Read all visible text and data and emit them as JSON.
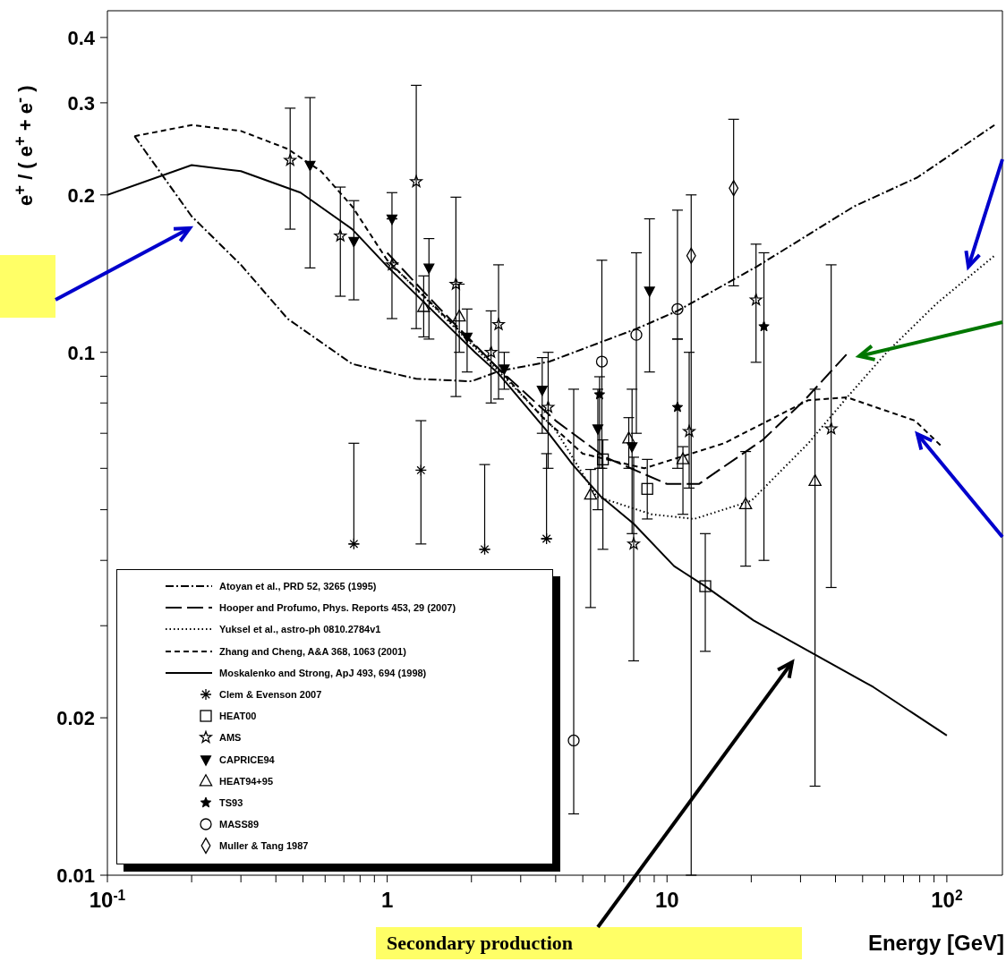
{
  "chart_data": {
    "type": "scatter",
    "xlabel": "Energy [GeV]",
    "ylabel": "e$^{+}$ / ( e$^{+}$ + e$^{-}$ )",
    "log": "xy",
    "legend": "bottom left",
    "xlim": [
      0.1,
      158
    ],
    "ylim": [
      0.01,
      0.45
    ],
    "xticks": [
      {
        "value": 0.1,
        "label": "10$^{-1}$"
      },
      {
        "value": 0.2,
        "label": null
      },
      {
        "value": 0.3,
        "label": null
      },
      {
        "value": 0.4,
        "label": null
      },
      {
        "value": 0.5,
        "label": null
      },
      {
        "value": 0.6,
        "label": null
      },
      {
        "value": 0.7,
        "label": null
      },
      {
        "value": 0.8,
        "label": null
      },
      {
        "value": 0.9,
        "label": null
      },
      1,
      {
        "value": 2,
        "label": null
      },
      {
        "value": 3,
        "label": null
      },
      {
        "value": 4,
        "label": null
      },
      {
        "value": 5,
        "label": null
      },
      {
        "value": 6,
        "label": null
      },
      {
        "value": 7,
        "label": null
      },
      {
        "value": 8,
        "label": null
      },
      {
        "value": 9,
        "label": null
      },
      10,
      {
        "value": 20,
        "label": null
      },
      {
        "value": 30,
        "label": null
      },
      {
        "value": 40,
        "label": null
      },
      {
        "value": 50,
        "label": null
      },
      {
        "value": 60,
        "label": null
      },
      {
        "value": 70,
        "label": null
      },
      {
        "value": 80,
        "label": null
      },
      {
        "value": 90,
        "label": null
      },
      {
        "value": 100,
        "label": "10$^{2}$"
      }
    ],
    "yticks": [
      0.01,
      0.02,
      {
        "value": 0.03,
        "label": null
      },
      {
        "value": 0.04,
        "label": null
      },
      {
        "value": 0.05,
        "label": null
      },
      {
        "value": 0.06,
        "label": null
      },
      {
        "value": 0.07,
        "label": null
      },
      {
        "value": 0.08,
        "label": null
      },
      {
        "value": 0.09,
        "label": null
      },
      0.1,
      0.2,
      0.3,
      0.4
    ],
    "annotations": [
      "Secondary production"
    ],
    "series": [
      {
        "type": "line",
        "name": "Atoyan et al., PRD 52, 3265 (1995)",
        "color": "#000000",
        "line_style": "dashdot",
        "x": [
          0.125,
          0.2,
          0.3,
          0.44,
          0.75,
          1.27,
          2,
          2.5,
          3.8,
          7.8,
          10.9,
          21,
          46.5,
          78.5,
          148
        ],
        "values": [
          0.259,
          0.182,
          0.147,
          0.116,
          0.095,
          0.089,
          0.088,
          0.092,
          0.096,
          0.111,
          0.12,
          0.146,
          0.19,
          0.216,
          0.272
        ]
      },
      {
        "type": "line",
        "name": "Hooper and Profumo, Phys. Reports 453, 29 (2007)",
        "color": "#000000",
        "line_style": "longdash",
        "x": [
          1,
          1.5,
          2.5,
          4,
          6,
          10,
          13,
          22,
          31,
          44.5
        ],
        "values": [
          0.155,
          0.123,
          0.093,
          0.074,
          0.063,
          0.056,
          0.056,
          0.068,
          0.081,
          0.1
        ]
      },
      {
        "type": "line",
        "name": "Yuksel et al., astro-ph 0810.2784v1",
        "color": "#000000",
        "line_style": "dotted",
        "x": [
          1,
          2.5,
          4,
          5.6,
          8.8,
          12.5,
          20,
          32,
          44,
          61,
          92,
          148
        ],
        "values": [
          0.15,
          0.092,
          0.071,
          0.053,
          0.049,
          0.048,
          0.052,
          0.067,
          0.082,
          0.1,
          0.124,
          0.153
        ]
      },
      {
        "type": "line",
        "name": "Zhang and Cheng, A&A 368, 1063 (2001)",
        "color": "#000000",
        "line_style": "dashed",
        "x": [
          0.125,
          0.2,
          0.3,
          0.44,
          0.58,
          0.75,
          1,
          2.5,
          3.6,
          5,
          8.3,
          16,
          32,
          44,
          77,
          96
        ],
        "values": [
          0.259,
          0.272,
          0.265,
          0.245,
          0.222,
          0.19,
          0.15,
          0.093,
          0.075,
          0.064,
          0.06,
          0.067,
          0.081,
          0.082,
          0.074,
          0.066
        ]
      },
      {
        "type": "line",
        "name": "Moskalenko and Strong, ApJ 493, 694 (1998)",
        "color": "#000000",
        "line_style": "solid",
        "x": [
          0.1,
          0.2,
          0.3,
          0.49,
          0.75,
          1,
          2.06,
          2.5,
          3.7,
          4.6,
          5.8,
          7.6,
          10.6,
          13.7,
          20.4,
          33.4,
          54.6,
          100
        ],
        "values": [
          0.2,
          0.228,
          0.222,
          0.202,
          0.172,
          0.146,
          0.1,
          0.091,
          0.071,
          0.061,
          0.053,
          0.047,
          0.039,
          0.0357,
          0.0307,
          0.0265,
          0.0229,
          0.0185
        ]
      },
      {
        "name": "Clem & Evenson 2007",
        "color": "#000000",
        "marker": "cross",
        "x": [
          0.76,
          1.32,
          2.23,
          3.71
        ],
        "values": [
          0.043,
          0.0595,
          0.042,
          0.044
        ],
        "errors": [
          [
            0.043,
            0.067
          ],
          [
            0.043,
            0.074
          ],
          [
            0.042,
            0.061
          ],
          [
            0.044,
            0.064
          ]
        ]
      },
      {
        "name": "HEAT00",
        "color": "#000000",
        "marker": "square",
        "x": [
          5.9,
          8.5,
          13.7
        ],
        "values": [
          0.0624,
          0.0548,
          0.0357
        ],
        "errors": [
          [
            0.042,
            0.068
          ],
          [
            0.048,
            0.0624
          ],
          [
            0.0268,
            0.045
          ]
        ]
      },
      {
        "name": "AMS",
        "color": "#000000",
        "marker": "star",
        "x": [
          0.45,
          0.68,
          1.04,
          1.27,
          1.76,
          2.35,
          2.5,
          3.76,
          7.6,
          12,
          20.8,
          38.6
        ],
        "values": [
          0.233,
          0.167,
          0.147,
          0.212,
          0.135,
          0.1,
          0.113,
          0.0785,
          0.043,
          0.0706,
          0.126,
          0.0714
        ],
        "errors": [
          [
            0.172,
            0.293
          ],
          [
            0.128,
            0.207
          ],
          [
            0.116,
            0.202
          ],
          [
            0.111,
            0.324
          ],
          [
            0.0823,
            0.198
          ],
          [
            0.08,
            0.12
          ],
          [
            0.0814,
            0.147
          ],
          [
            0.06,
            0.1
          ],
          [
            0.0257,
            0.063
          ],
          [
            0.055,
            0.1
          ],
          [
            0.0957,
            0.161
          ],
          [
            0.0355,
            0.147
          ]
        ]
      },
      {
        "name": "CAPRICE94",
        "color": "#000000",
        "marker": "triangle-down",
        "x": [
          0.53,
          0.76,
          1.04,
          1.41,
          1.93,
          2.62,
          3.58,
          5.66,
          7.5,
          8.66
        ],
        "values": [
          0.228,
          0.163,
          0.18,
          0.145,
          0.107,
          0.093,
          0.0847,
          0.0714,
          0.066,
          0.131
        ],
        "errors": [
          [
            0.145,
            0.307
          ],
          [
            0.126,
            0.195
          ],
          null,
          [
            0.106,
            0.165
          ],
          [
            0.0917,
            0.121
          ],
          [
            0.085,
            0.1
          ],
          [
            0.07,
            0.0977
          ],
          [
            0.05,
            0.085
          ],
          [
            0.045,
            0.085
          ],
          [
            0.0917,
            0.18
          ]
        ]
      },
      {
        "name": "HEAT94+95",
        "color": "#000000",
        "marker": "triangle",
        "x": [
          1.35,
          1.81,
          5.33,
          7.3,
          11.4,
          19.1,
          33.8
        ],
        "values": [
          0.122,
          0.117,
          0.0534,
          0.0684,
          0.0624,
          0.0512,
          0.0567
        ],
        "errors": [
          [
            0.107,
            0.14
          ],
          [
            0.1,
            0.135
          ],
          [
            0.0325,
            0.0597
          ],
          [
            0.06,
            0.075
          ],
          [
            0.049,
            0.066
          ],
          [
            0.039,
            0.0646
          ],
          [
            0.0148,
            0.085
          ]
        ]
      },
      {
        "name": "TS93",
        "color": "#000000",
        "marker": "star-filled",
        "x": [
          5.74,
          10.9,
          22.2
        ],
        "values": [
          0.083,
          0.0785,
          0.112
        ],
        "errors": [
          [
            0.06,
            0.0898
          ],
          [
            0.06,
            0.106
          ],
          [
            0.04,
            0.155
          ]
        ]
      },
      {
        "name": "MASS89",
        "color": "#000000",
        "marker": "circle",
        "x": [
          4.64,
          5.85,
          7.77,
          10.9
        ],
        "values": [
          0.0181,
          0.096,
          0.108,
          0.121
        ],
        "errors": [
          [
            0.0131,
            0.085
          ],
          [
            0.06,
            0.15
          ],
          [
            0.07,
            0.155
          ],
          [
            0.106,
            0.187
          ]
        ]
      },
      {
        "name": "Muller & Tang 1987",
        "color": "#000000",
        "marker": "diamond",
        "x": [
          12.2,
          17.3
        ],
        "values": [
          0.153,
          0.206
        ],
        "errors": [
          [
            0.01,
            0.2
          ],
          [
            0.134,
            0.279
          ]
        ]
      }
    ]
  }
}
